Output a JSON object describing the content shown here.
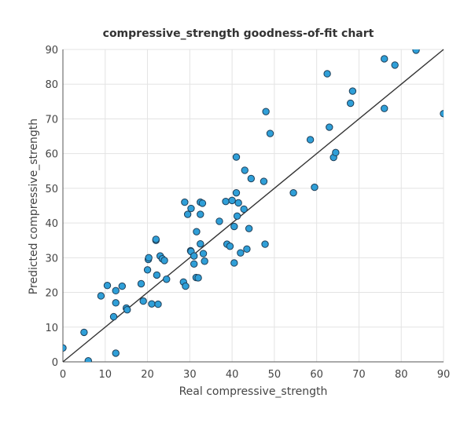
{
  "chart_data": {
    "type": "scatter",
    "title": "compressive_strength goodness-of-fit chart",
    "xlabel": "Real compressive_strength",
    "ylabel": "Predicted compressive_strength",
    "xlim": [
      0,
      90
    ],
    "ylim": [
      0,
      90
    ],
    "xticks": [
      0,
      10,
      20,
      30,
      40,
      50,
      60,
      70,
      80,
      90
    ],
    "yticks": [
      0,
      10,
      20,
      30,
      40,
      50,
      60,
      70,
      80,
      90
    ],
    "grid": true,
    "reference_line": {
      "from": [
        0,
        0
      ],
      "to": [
        90,
        90
      ],
      "color": "#333333"
    },
    "marker_color": "#2f9fd8",
    "marker_edge_color": "#1f3f58",
    "series": [
      {
        "points": [
          [
            0,
            4
          ],
          [
            5,
            8.5
          ],
          [
            6,
            0.3
          ],
          [
            9,
            19
          ],
          [
            10.5,
            22
          ],
          [
            12,
            13
          ],
          [
            12.5,
            2.5
          ],
          [
            12.5,
            17
          ],
          [
            12.5,
            20.5
          ],
          [
            14,
            21.8
          ],
          [
            15,
            15.5
          ],
          [
            15.2,
            15
          ],
          [
            18.5,
            22.5
          ],
          [
            19,
            17.5
          ],
          [
            20,
            26.5
          ],
          [
            20.2,
            29.5
          ],
          [
            20.3,
            30
          ],
          [
            21,
            16.7
          ],
          [
            22,
            35
          ],
          [
            22,
            35.3
          ],
          [
            22.5,
            16.6
          ],
          [
            22.2,
            25
          ],
          [
            23,
            30.5
          ],
          [
            23.5,
            29.7
          ],
          [
            24,
            29.2
          ],
          [
            24.5,
            23.8
          ],
          [
            28.5,
            23
          ],
          [
            29,
            21.8
          ],
          [
            28.8,
            46
          ],
          [
            29.5,
            42.5
          ],
          [
            30.3,
            44.2
          ],
          [
            30.2,
            32
          ],
          [
            30.3,
            31.8
          ],
          [
            31,
            30.5
          ],
          [
            31,
            28.2
          ],
          [
            31.5,
            24.3
          ],
          [
            31.6,
            37.5
          ],
          [
            32,
            24.2
          ],
          [
            32.5,
            34
          ],
          [
            32.5,
            42.5
          ],
          [
            32.5,
            46
          ],
          [
            33,
            45.7
          ],
          [
            33.2,
            31.2
          ],
          [
            33.5,
            29
          ],
          [
            37,
            40.5
          ],
          [
            38.5,
            46.2
          ],
          [
            38.8,
            33.9
          ],
          [
            39.5,
            33.3
          ],
          [
            40,
            46.5
          ],
          [
            40.5,
            39
          ],
          [
            40.5,
            28.5
          ],
          [
            41,
            59
          ],
          [
            41,
            48.7
          ],
          [
            41.2,
            42
          ],
          [
            41.5,
            45.8
          ],
          [
            42,
            31.4
          ],
          [
            42.8,
            44
          ],
          [
            43,
            55.2
          ],
          [
            43.5,
            32.5
          ],
          [
            44,
            38.4
          ],
          [
            44.5,
            52.8
          ],
          [
            47.5,
            52
          ],
          [
            47.8,
            33.9
          ],
          [
            48,
            72.1
          ],
          [
            49,
            65.8
          ],
          [
            54.5,
            48.7
          ],
          [
            58.5,
            64
          ],
          [
            59.5,
            50.3
          ],
          [
            62.5,
            83
          ],
          [
            63,
            67.6
          ],
          [
            64,
            58.9
          ],
          [
            64.5,
            60.3
          ],
          [
            68,
            74.5
          ],
          [
            68.5,
            78
          ],
          [
            76,
            73
          ],
          [
            76,
            87.3
          ],
          [
            78.5,
            85.5
          ],
          [
            83.5,
            89.8
          ],
          [
            90,
            71.5
          ]
        ]
      }
    ]
  }
}
